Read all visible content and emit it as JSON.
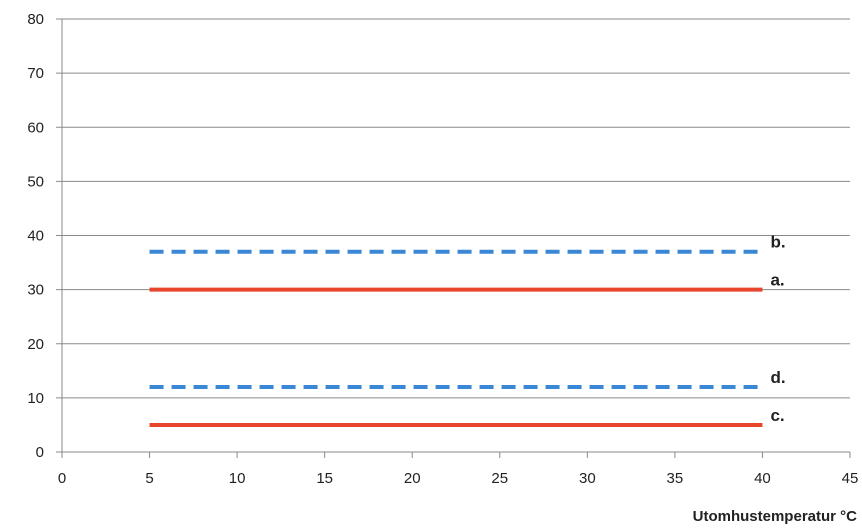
{
  "chart_data": {
    "type": "line",
    "title": "",
    "xlabel": "Utomhustemperatur °C",
    "ylabel": "",
    "xlim": [
      0,
      45
    ],
    "ylim": [
      0,
      80
    ],
    "x_ticks": [
      "0",
      "5",
      "10",
      "15",
      "20",
      "25",
      "30",
      "35",
      "40",
      "45"
    ],
    "y_ticks": [
      "0",
      "10",
      "20",
      "30",
      "40",
      "50",
      "60",
      "70",
      "80"
    ],
    "grid": true,
    "series": [
      {
        "name": "b.",
        "x": [
          5,
          40
        ],
        "y": [
          37,
          37
        ],
        "color": "#3a87d6",
        "style": "dashed"
      },
      {
        "name": "a.",
        "x": [
          5,
          40
        ],
        "y": [
          30,
          30
        ],
        "color": "#e8452c",
        "style": "solid"
      },
      {
        "name": "d.",
        "x": [
          5,
          40
        ],
        "y": [
          12,
          12
        ],
        "color": "#3a87d6",
        "style": "dashed"
      },
      {
        "name": "c.",
        "x": [
          5,
          40
        ],
        "y": [
          5,
          5
        ],
        "color": "#e8452c",
        "style": "solid"
      }
    ]
  }
}
